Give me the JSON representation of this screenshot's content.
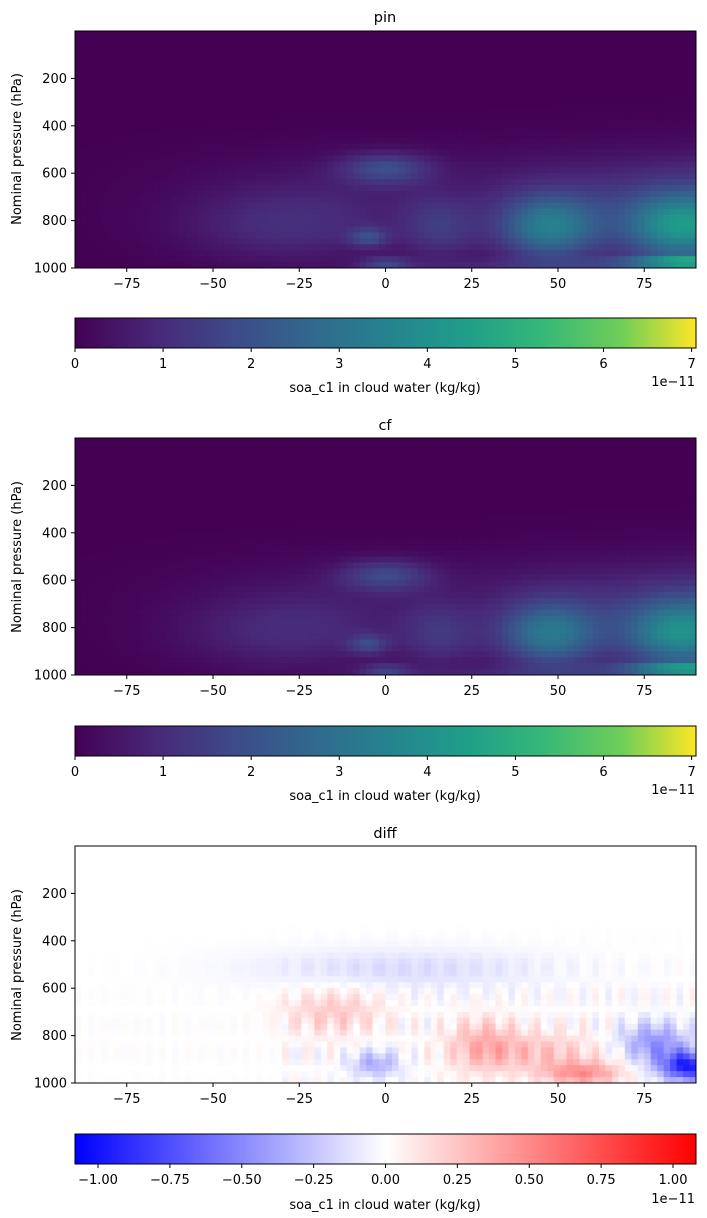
{
  "chart_data": [
    {
      "type": "heatmap",
      "title": "pin",
      "ylabel": "Nominal pressure (hPa)",
      "xlabel": "",
      "xlim": [
        -90,
        90
      ],
      "ylim": [
        1000,
        0
      ],
      "x_ticks": [
        "−75",
        "−50",
        "−25",
        "0",
        "25",
        "50",
        "75"
      ],
      "x_tick_values": [
        -75,
        -50,
        -25,
        0,
        25,
        50,
        75
      ],
      "y_ticks": [
        "200",
        "400",
        "600",
        "800",
        "1000"
      ],
      "y_tick_values": [
        200,
        400,
        600,
        800,
        1000
      ],
      "colormap": "viridis",
      "colorbar": {
        "label": "soa_c1 in cloud water (kg/kg)",
        "range": [
          0,
          7.05
        ],
        "ticks": [
          "0",
          "1",
          "2",
          "3",
          "4",
          "5",
          "6",
          "7"
        ],
        "tick_values": [
          0,
          1,
          2,
          3,
          4,
          5,
          6,
          7
        ],
        "offset_text": "1e−11"
      }
    },
    {
      "type": "heatmap",
      "title": "cf",
      "ylabel": "Nominal pressure (hPa)",
      "xlabel": "",
      "xlim": [
        -90,
        90
      ],
      "ylim": [
        1000,
        0
      ],
      "x_ticks": [
        "−75",
        "−50",
        "−25",
        "0",
        "25",
        "50",
        "75"
      ],
      "x_tick_values": [
        -75,
        -50,
        -25,
        0,
        25,
        50,
        75
      ],
      "y_ticks": [
        "200",
        "400",
        "600",
        "800",
        "1000"
      ],
      "y_tick_values": [
        200,
        400,
        600,
        800,
        1000
      ],
      "colormap": "viridis",
      "colorbar": {
        "label": "soa_c1 in cloud water (kg/kg)",
        "range": [
          0,
          7.05
        ],
        "ticks": [
          "0",
          "1",
          "2",
          "3",
          "4",
          "5",
          "6",
          "7"
        ],
        "tick_values": [
          0,
          1,
          2,
          3,
          4,
          5,
          6,
          7
        ],
        "offset_text": "1e−11"
      }
    },
    {
      "type": "heatmap",
      "title": "diff",
      "ylabel": "Nominal pressure (hPa)",
      "xlabel": "",
      "xlim": [
        -90,
        90
      ],
      "ylim": [
        1000,
        0
      ],
      "x_ticks": [
        "−75",
        "−50",
        "−25",
        "0",
        "25",
        "50",
        "75"
      ],
      "x_tick_values": [
        -75,
        -50,
        -25,
        0,
        25,
        50,
        75
      ],
      "y_ticks": [
        "200",
        "400",
        "600",
        "800",
        "1000"
      ],
      "y_tick_values": [
        200,
        400,
        600,
        800,
        1000
      ],
      "colormap": "bwr",
      "colorbar": {
        "label": "soa_c1 in cloud water (kg/kg)",
        "range": [
          -1.08,
          1.08
        ],
        "ticks": [
          "−1.00",
          "−0.75",
          "−0.50",
          "−0.25",
          "0.00",
          "0.25",
          "0.50",
          "0.75",
          "1.00"
        ],
        "tick_values": [
          -1.0,
          -0.75,
          -0.5,
          -0.25,
          0.0,
          0.25,
          0.5,
          0.75,
          1.0
        ],
        "offset_text": "1e−11"
      }
    }
  ]
}
